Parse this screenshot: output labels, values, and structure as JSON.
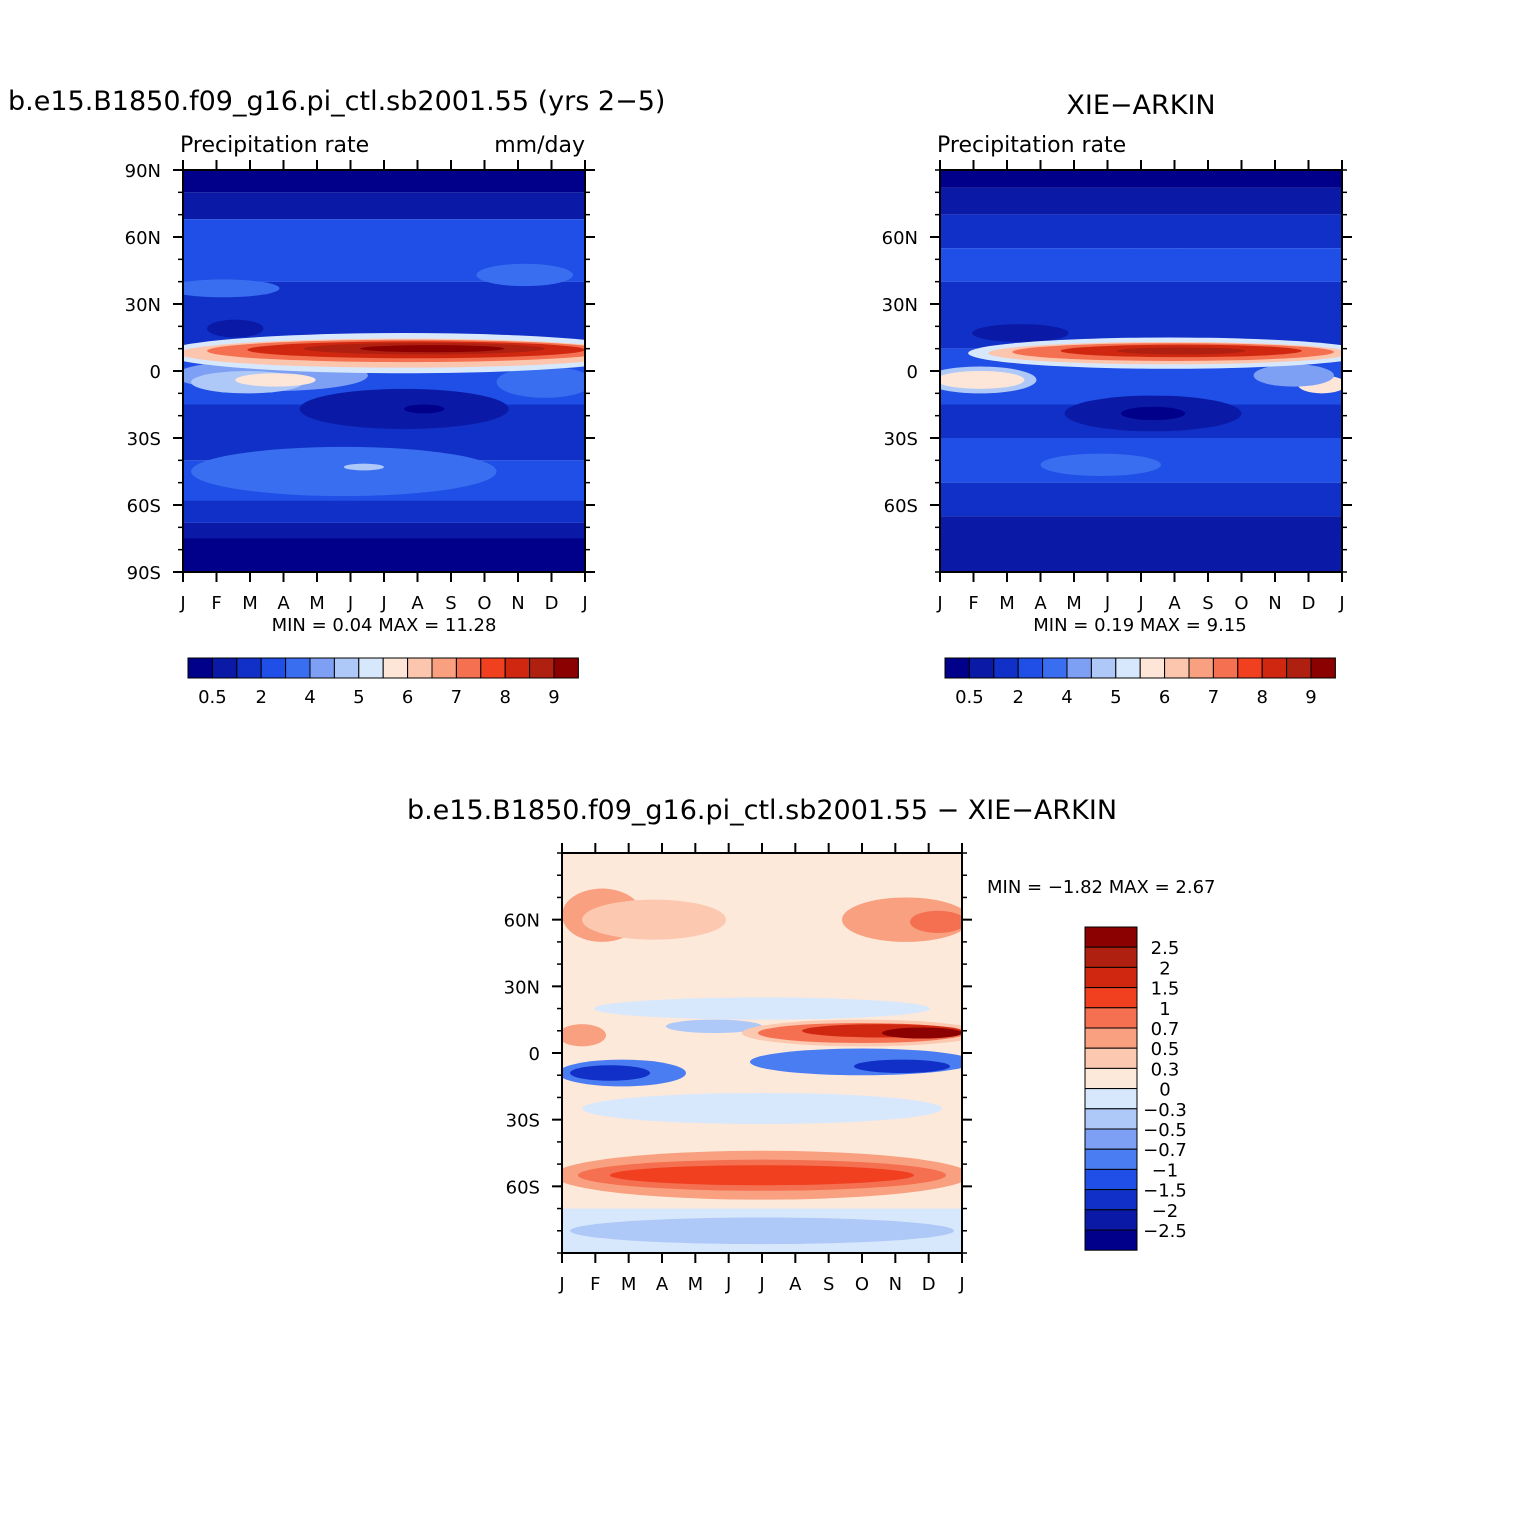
{
  "panels": [
    {
      "title": "b.e15.B1850.f09_g16.pi_ctl.sb2001.55 (yrs 2−5)",
      "subtitle_left": "Precipitation rate",
      "subtitle_right": "mm/day",
      "minmax": "MIN =    0.04  MAX =    11.28"
    },
    {
      "title": "XIE−ARKIN",
      "subtitle_left": "Precipitation rate",
      "subtitle_right": "",
      "minmax": "MIN =    0.19  MAX =    9.15"
    },
    {
      "title": "b.e15.B1850.f09_g16.pi_ctl.sb2001.55 − XIE−ARKIN",
      "subtitle_left": "",
      "subtitle_right": "",
      "minmax": "MIN =   −1.82  MAX =    2.67"
    }
  ],
  "colors": {
    "precip": [
      "#00008b",
      "#0a1aa6",
      "#1030c8",
      "#1f4fe6",
      "#3a6ef0",
      "#7ea0f4",
      "#aec8f8",
      "#d8e8fc",
      "#fde6d8",
      "#fcc6ae",
      "#f8a080",
      "#f47050",
      "#f04020",
      "#d02810",
      "#b02010",
      "#8b0000"
    ],
    "diff": [
      "#00008b",
      "#0a1aa6",
      "#1030c8",
      "#1f4fe6",
      "#4a7cf2",
      "#7ea0f4",
      "#aec8f8",
      "#d8e8fc",
      "#fde9da",
      "#fcc8b0",
      "#f8a080",
      "#f47050",
      "#f04020",
      "#d02810",
      "#b02010",
      "#8b0000"
    ]
  },
  "chart_data": [
    {
      "type": "heatmap",
      "title": "b.e15.B1850.f09_g16.pi_ctl.sb2001.55 (yrs 2−5)",
      "variable": "Precipitation rate",
      "units": "mm/day",
      "x_ticks": [
        "J",
        "F",
        "M",
        "A",
        "M",
        "J",
        "J",
        "A",
        "S",
        "O",
        "N",
        "D",
        "J"
      ],
      "y_ticks": [
        "90N",
        "60N",
        "30N",
        "0",
        "30S",
        "60S",
        "90S"
      ],
      "ylim": [
        -90,
        90
      ],
      "levels_labels": [
        "0.5",
        "2",
        "4",
        "5",
        "6",
        "7",
        "8",
        "9"
      ],
      "min": 0.04,
      "max": 11.28
    },
    {
      "type": "heatmap",
      "title": "XIE−ARKIN",
      "variable": "Precipitation rate",
      "x_ticks": [
        "J",
        "F",
        "M",
        "A",
        "M",
        "J",
        "J",
        "A",
        "S",
        "O",
        "N",
        "D",
        "J"
      ],
      "y_ticks": [
        "60N",
        "30N",
        "0",
        "30S",
        "60S"
      ],
      "ylim": [
        -90,
        90
      ],
      "levels_labels": [
        "0.5",
        "2",
        "4",
        "5",
        "6",
        "7",
        "8",
        "9"
      ],
      "min": 0.19,
      "max": 9.15
    },
    {
      "type": "heatmap",
      "title": "b.e15.B1850.f09_g16.pi_ctl.sb2001.55 − XIE−ARKIN",
      "x_ticks": [
        "J",
        "F",
        "M",
        "A",
        "M",
        "J",
        "J",
        "A",
        "S",
        "O",
        "N",
        "D",
        "J"
      ],
      "y_ticks": [
        "60N",
        "30N",
        "0",
        "30S",
        "60S"
      ],
      "ylim": [
        -90,
        90
      ],
      "levels_labels": [
        "2.5",
        "2",
        "1.5",
        "1",
        "0.7",
        "0.5",
        "0.3",
        "0",
        "−0.3",
        "−0.5",
        "−0.7",
        "−1",
        "−1.5",
        "−2",
        "−2.5"
      ],
      "min": -1.82,
      "max": 2.67
    }
  ]
}
